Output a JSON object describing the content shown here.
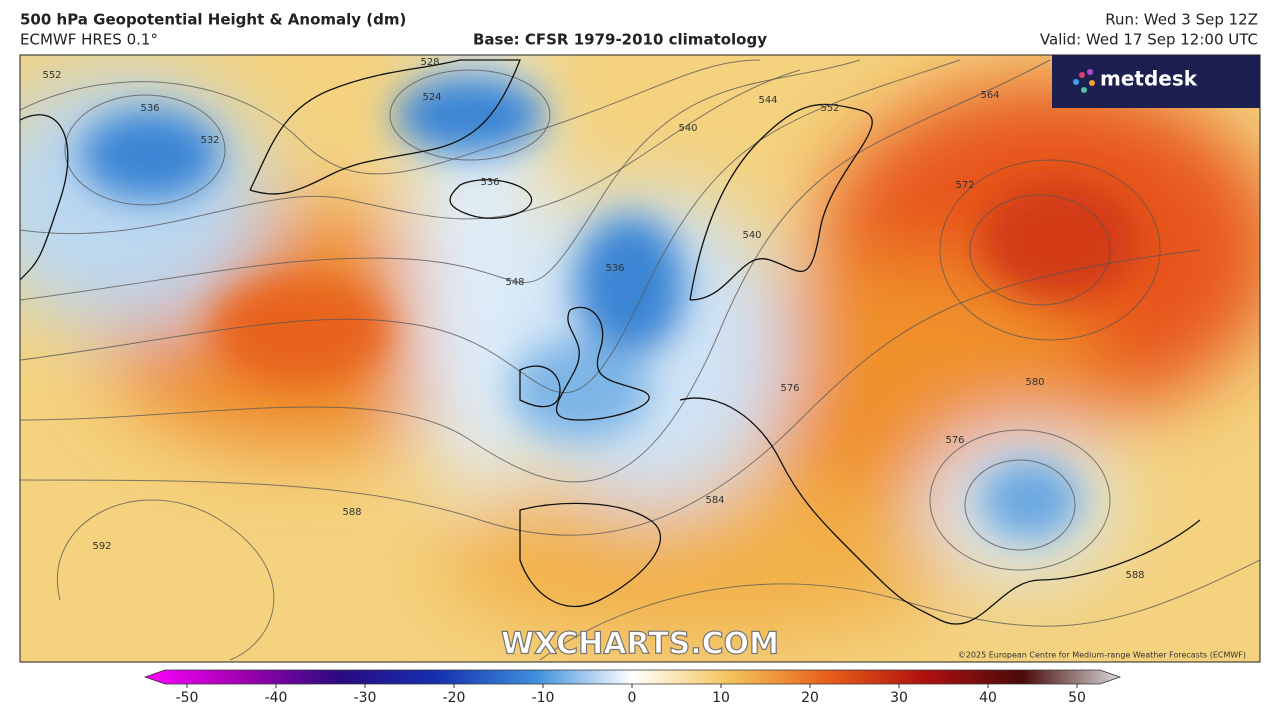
{
  "header": {
    "title": "500 hPa Geopotential Height & Anomaly (dm)",
    "model": "ECMWF HRES 0.1°",
    "base": "Base: CFSR 1979-2010 climatology",
    "run": "Run: Wed 3 Sep 12Z",
    "valid": "Valid: Wed 17 Sep 12:00 UTC"
  },
  "logo": "metdesk",
  "watermark": "WXCHARTS.COM",
  "copyright": "©2025 European Centre for Medium-range Weather Forecasts (ECMWF)",
  "contour_labels": [
    552,
    536,
    532,
    528,
    524,
    540,
    544,
    552,
    564,
    572,
    536,
    548,
    536,
    540,
    576,
    580,
    576,
    584,
    588,
    592,
    588
  ],
  "colorbar": {
    "lim": [
      -50,
      50
    ],
    "ticks": [
      -50,
      -40,
      -30,
      -20,
      -10,
      0,
      10,
      20,
      30,
      40,
      50
    ]
  }
}
